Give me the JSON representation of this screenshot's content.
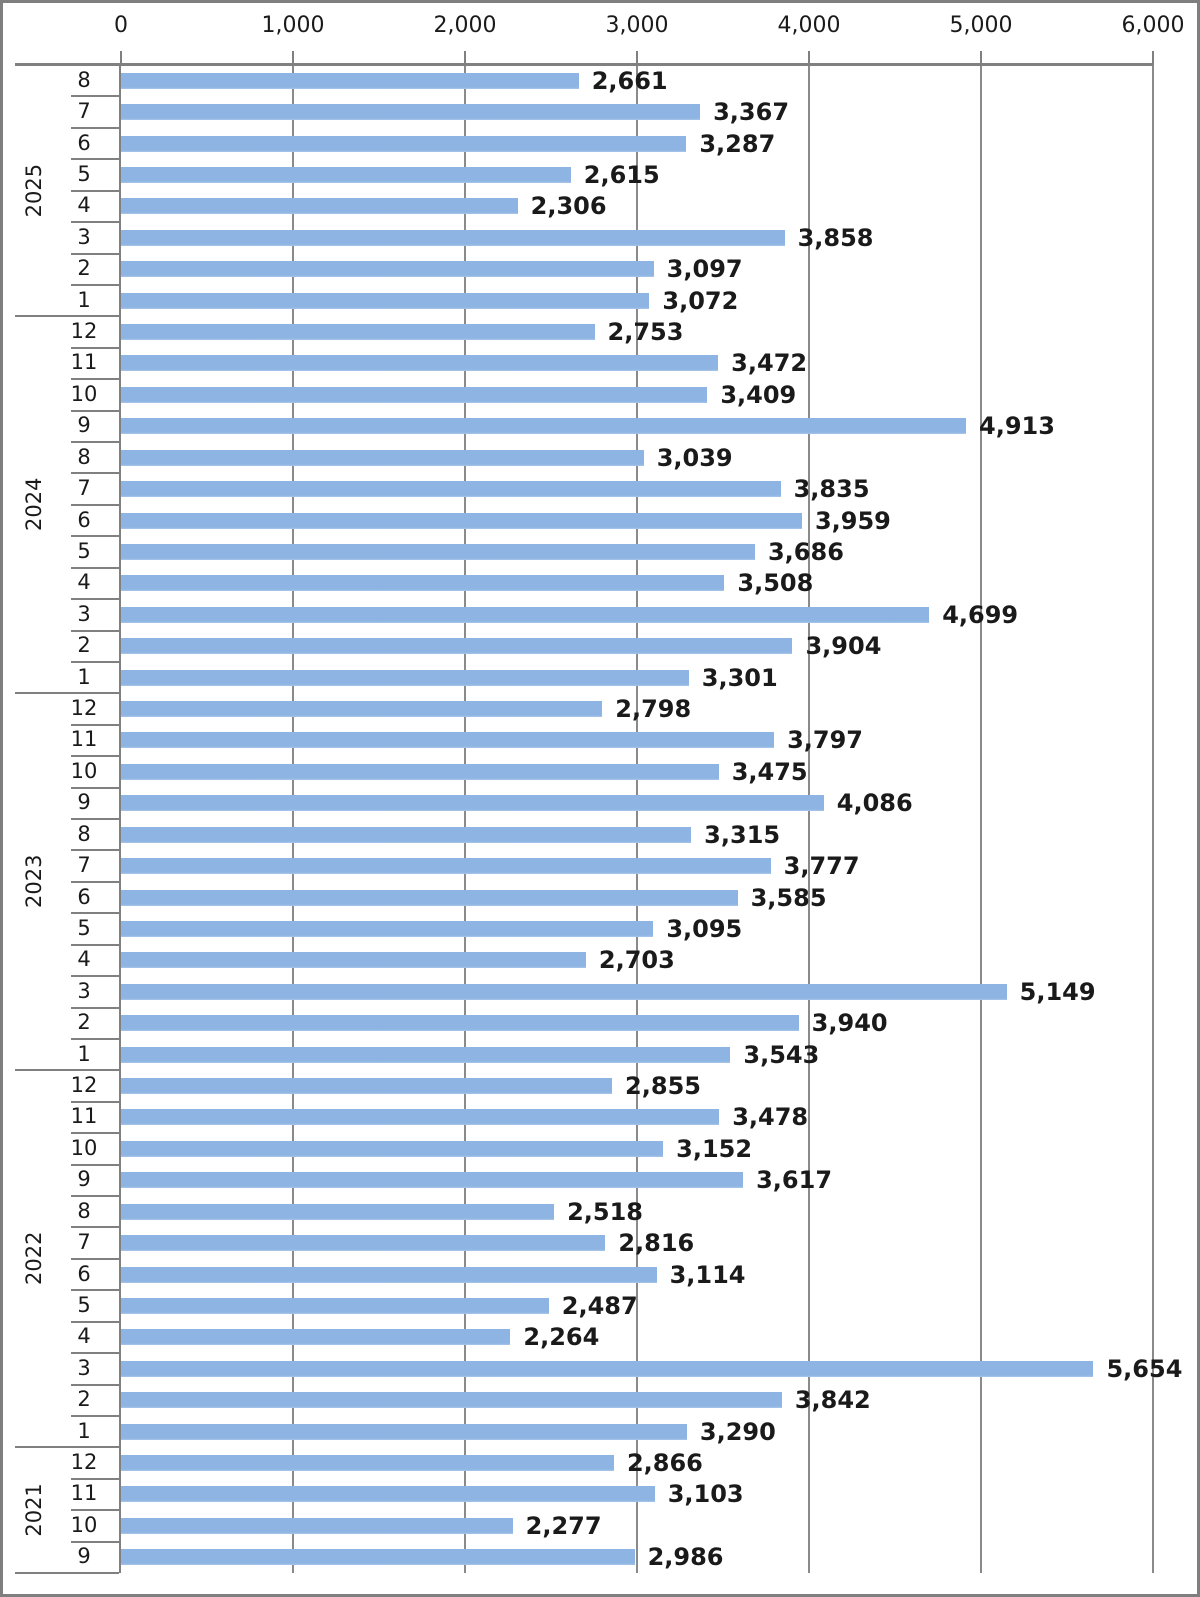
{
  "chart_data": {
    "type": "bar",
    "orientation": "horizontal",
    "title": "",
    "xlabel": "",
    "ylabel": "",
    "legend": null,
    "x_axis": {
      "position": "top",
      "min": 0,
      "max": 6000,
      "tick_interval": 1000,
      "tick_labels": [
        "0",
        "1,000",
        "2,000",
        "3,000",
        "4,000",
        "5,000",
        "6,000"
      ],
      "gridlines": true
    },
    "y_axis": {
      "type": "multi-level-category",
      "outer_level": "year",
      "inner_level": "month",
      "order": "newest-first"
    },
    "bar_color": "#8DB4E2",
    "groups": [
      {
        "year": "2025",
        "rows": [
          {
            "month": "8",
            "value": 2661,
            "label": "2,661"
          },
          {
            "month": "7",
            "value": 3367,
            "label": "3,367"
          },
          {
            "month": "6",
            "value": 3287,
            "label": "3,287"
          },
          {
            "month": "5",
            "value": 2615,
            "label": "2,615"
          },
          {
            "month": "4",
            "value": 2306,
            "label": "2,306"
          },
          {
            "month": "3",
            "value": 3858,
            "label": "3,858"
          },
          {
            "month": "2",
            "value": 3097,
            "label": "3,097"
          },
          {
            "month": "1",
            "value": 3072,
            "label": "3,072"
          }
        ]
      },
      {
        "year": "2024",
        "rows": [
          {
            "month": "12",
            "value": 2753,
            "label": "2,753"
          },
          {
            "month": "11",
            "value": 3472,
            "label": "3,472"
          },
          {
            "month": "10",
            "value": 3409,
            "label": "3,409"
          },
          {
            "month": "9",
            "value": 4913,
            "label": "4,913"
          },
          {
            "month": "8",
            "value": 3039,
            "label": "3,039"
          },
          {
            "month": "7",
            "value": 3835,
            "label": "3,835"
          },
          {
            "month": "6",
            "value": 3959,
            "label": "3,959"
          },
          {
            "month": "5",
            "value": 3686,
            "label": "3,686"
          },
          {
            "month": "4",
            "value": 3508,
            "label": "3,508"
          },
          {
            "month": "3",
            "value": 4699,
            "label": "4,699"
          },
          {
            "month": "2",
            "value": 3904,
            "label": "3,904"
          },
          {
            "month": "1",
            "value": 3301,
            "label": "3,301"
          }
        ]
      },
      {
        "year": "2023",
        "rows": [
          {
            "month": "12",
            "value": 2798,
            "label": "2,798"
          },
          {
            "month": "11",
            "value": 3797,
            "label": "3,797"
          },
          {
            "month": "10",
            "value": 3475,
            "label": "3,475"
          },
          {
            "month": "9",
            "value": 4086,
            "label": "4,086"
          },
          {
            "month": "8",
            "value": 3315,
            "label": "3,315"
          },
          {
            "month": "7",
            "value": 3777,
            "label": "3,777"
          },
          {
            "month": "6",
            "value": 3585,
            "label": "3,585"
          },
          {
            "month": "5",
            "value": 3095,
            "label": "3,095"
          },
          {
            "month": "4",
            "value": 2703,
            "label": "2,703"
          },
          {
            "month": "3",
            "value": 5149,
            "label": "5,149"
          },
          {
            "month": "2",
            "value": 3940,
            "label": "3,940"
          },
          {
            "month": "1",
            "value": 3543,
            "label": "3,543"
          }
        ]
      },
      {
        "year": "2022",
        "rows": [
          {
            "month": "12",
            "value": 2855,
            "label": "2,855"
          },
          {
            "month": "11",
            "value": 3478,
            "label": "3,478"
          },
          {
            "month": "10",
            "value": 3152,
            "label": "3,152"
          },
          {
            "month": "9",
            "value": 3617,
            "label": "3,617"
          },
          {
            "month": "8",
            "value": 2518,
            "label": "2,518"
          },
          {
            "month": "7",
            "value": 2816,
            "label": "2,816"
          },
          {
            "month": "6",
            "value": 3114,
            "label": "3,114"
          },
          {
            "month": "5",
            "value": 2487,
            "label": "2,487"
          },
          {
            "month": "4",
            "value": 2264,
            "label": "2,264"
          },
          {
            "month": "3",
            "value": 5654,
            "label": "5,654"
          },
          {
            "month": "2",
            "value": 3842,
            "label": "3,842"
          },
          {
            "month": "1",
            "value": 3290,
            "label": "3,290"
          }
        ]
      },
      {
        "year": "2021",
        "rows": [
          {
            "month": "12",
            "value": 2866,
            "label": "2,866"
          },
          {
            "month": "11",
            "value": 3103,
            "label": "3,103"
          },
          {
            "month": "10",
            "value": 2277,
            "label": "2,277"
          },
          {
            "month": "9",
            "value": 2986,
            "label": "2,986"
          }
        ]
      }
    ]
  },
  "colors": {
    "bar": "#8DB4E2",
    "grid": "#8A8A8A",
    "axis": "#808080",
    "text": "#1A1A1A",
    "frame_border": "#7F7F7F",
    "background": "#FFFFFF"
  }
}
